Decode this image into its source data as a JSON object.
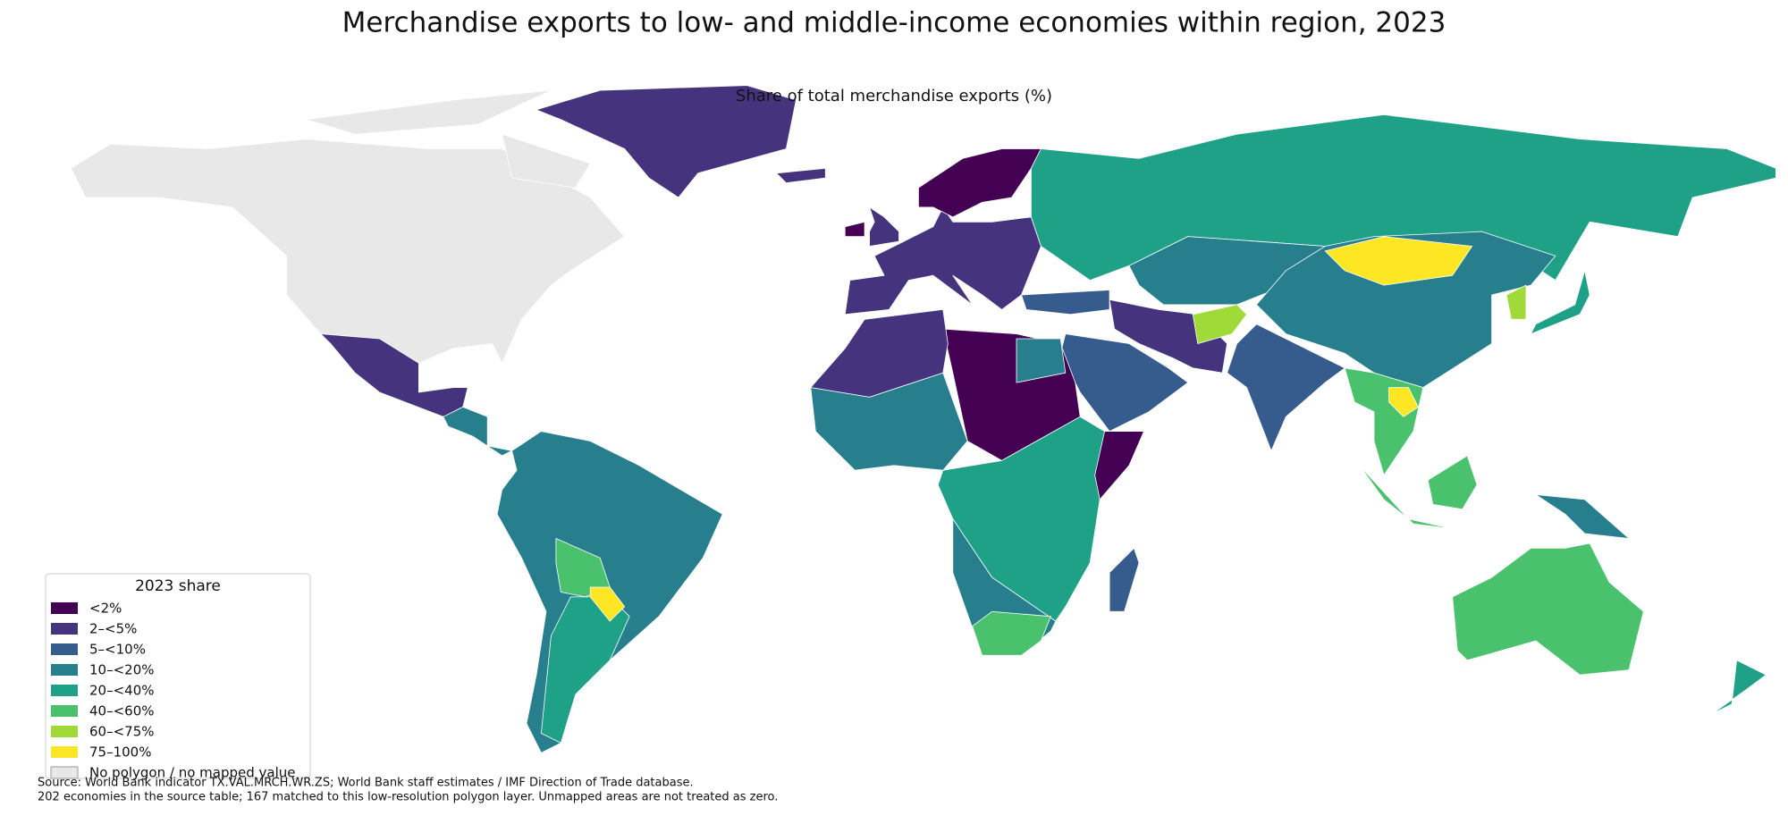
{
  "title": "Merchandise exports to low- and middle-income economies within region, 2023",
  "subtitle": "Share of total merchandise exports (%)",
  "legend": {
    "title": "2023 share",
    "items": [
      {
        "label": "<2%",
        "color": "#440154"
      },
      {
        "label": "2–<5%",
        "color": "#46337e"
      },
      {
        "label": "5–<10%",
        "color": "#365c8d"
      },
      {
        "label": "10–<20%",
        "color": "#277f8e"
      },
      {
        "label": "20–<40%",
        "color": "#1fa187"
      },
      {
        "label": "40–<60%",
        "color": "#4ac16d"
      },
      {
        "label": "60–<75%",
        "color": "#a0da39"
      },
      {
        "label": "75–100%",
        "color": "#fde725"
      },
      {
        "label": "No polygon / no mapped value",
        "color": "#e8e8e8"
      }
    ]
  },
  "source": {
    "lines": [
      "Source: World Bank indicator TX.VAL.MRCH.WR.ZS; World Bank staff estimates / IMF Direction of Trade database.",
      "202 economies in the source table; 167 matched to this low-resolution polygon layer. Unmapped areas are not treated as zero."
    ]
  }
}
